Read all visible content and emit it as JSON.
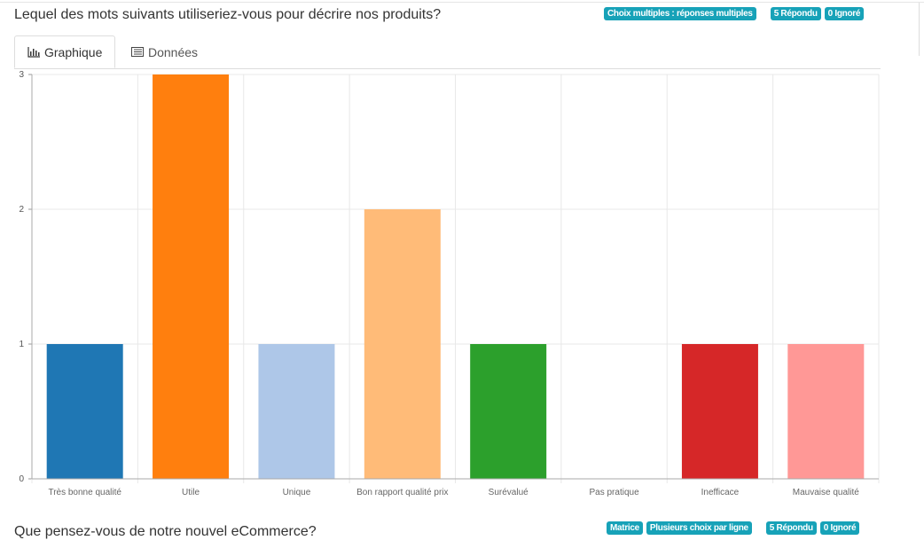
{
  "question1": {
    "title": "Lequel des mots suivants utiliseriez-vous pour décrire nos produits?",
    "badges": [
      "Choix multiples : réponses multiples",
      "5 Répondu",
      "0 Ignoré"
    ],
    "tabs": [
      {
        "label": "Graphique",
        "icon": "bar-chart-icon",
        "active": true
      },
      {
        "label": "Données",
        "icon": "table-list-icon",
        "active": false
      }
    ]
  },
  "chart_data": {
    "type": "bar",
    "categories": [
      "Très bonne qualité",
      "Utile",
      "Unique",
      "Bon rapport qualité prix",
      "Surévalué",
      "Pas pratique",
      "Inefficace",
      "Mauvaise qualité"
    ],
    "values": [
      1,
      3,
      1,
      2,
      1,
      0,
      1,
      1
    ],
    "colors": [
      "#1f77b4",
      "#ff7f0e",
      "#aec7e8",
      "#ffbb78",
      "#2ca02c",
      "#98df8a",
      "#d62728",
      "#ff9896"
    ],
    "yticks": [
      "0",
      "1",
      "2",
      "3"
    ],
    "ylim": [
      0,
      3
    ],
    "grid": true
  },
  "question2": {
    "title": "Que pensez-vous de notre nouvel eCommerce?",
    "badges": [
      "Matrice",
      "Plusieurs choix par ligne",
      "5 Répondu",
      "0 Ignoré"
    ]
  }
}
